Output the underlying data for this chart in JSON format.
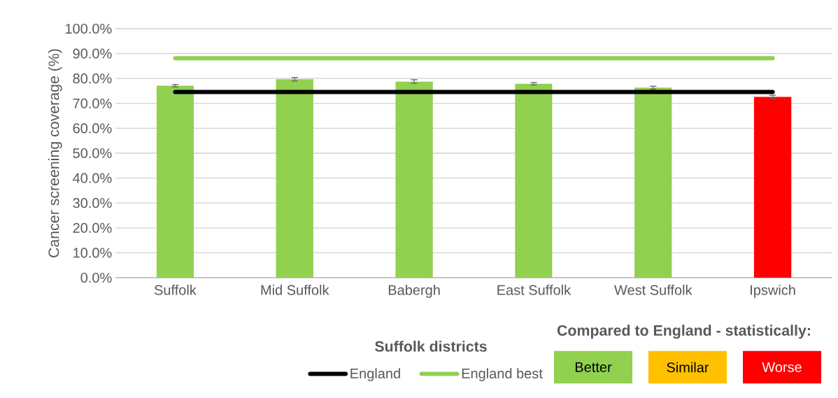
{
  "chart_data": {
    "type": "bar",
    "categories": [
      "Suffolk",
      "Mid Suffolk",
      "Babergh",
      "East Suffolk",
      "West Suffolk",
      "Ipswich"
    ],
    "series": [
      {
        "values": [
          77.1,
          79.7,
          78.8,
          77.9,
          76.3,
          72.6
        ],
        "colors": [
          "#92d050",
          "#92d050",
          "#92d050",
          "#92d050",
          "#92d050",
          "#ff0000"
        ],
        "errors": [
          0.5,
          0.7,
          0.7,
          0.5,
          0.6,
          0.7
        ]
      },
      {
        "type": "line",
        "name": "England",
        "color": "#000000",
        "values": [
          74.6,
          74.6,
          74.6,
          74.6,
          74.6,
          74.6
        ]
      },
      {
        "type": "line",
        "name": "England best",
        "color": "#92d050",
        "values": [
          88.1,
          88.1,
          88.1,
          88.1,
          88.1,
          88.1
        ]
      }
    ],
    "xlabel": "Suffolk districts",
    "ylabel": "Cancer screening coverage (%)",
    "ylim": [
      0,
      100
    ],
    "yticks": [
      {
        "value": 0,
        "label": "0.0%"
      },
      {
        "value": 10,
        "label": "10.0%"
      },
      {
        "value": 20,
        "label": "20.0%"
      },
      {
        "value": 30,
        "label": "30.0%"
      },
      {
        "value": 40,
        "label": "40.0%"
      },
      {
        "value": 50,
        "label": "50.0%"
      },
      {
        "value": 60,
        "label": "60.0%"
      },
      {
        "value": 70,
        "label": "70.0%"
      },
      {
        "value": 80,
        "label": "80.0%"
      },
      {
        "value": 90,
        "label": "90.0%"
      },
      {
        "value": 100,
        "label": "100.0%"
      }
    ],
    "grid": "y",
    "legend": "bottom",
    "annotations": [
      "Compared to England - statistically:",
      "Better",
      "Similar",
      "Worse"
    ]
  }
}
